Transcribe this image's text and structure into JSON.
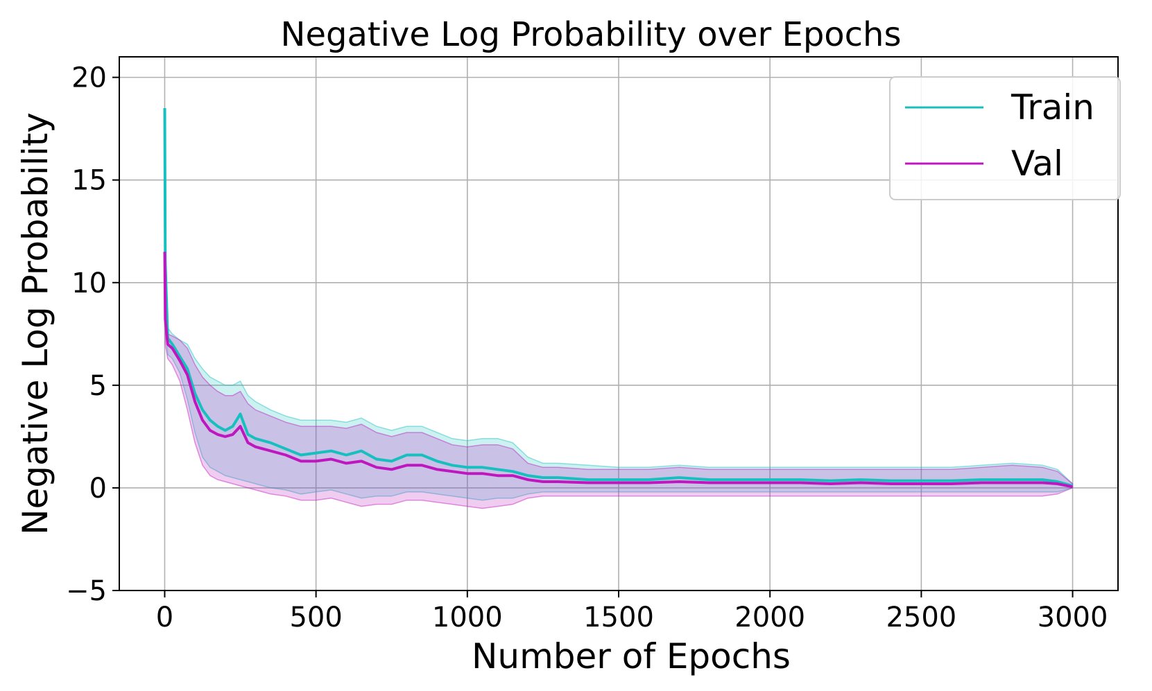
{
  "chart_data": {
    "type": "line",
    "title": "Negative Log Probability over Epochs",
    "xlabel": "Number of Epochs",
    "ylabel": "Negative Log Probability",
    "xlim": [
      -150,
      3150
    ],
    "ylim": [
      -5,
      21
    ],
    "xticks": [
      0,
      500,
      1000,
      1500,
      2000,
      2500,
      3000
    ],
    "yticks": [
      -5,
      0,
      5,
      10,
      15,
      20
    ],
    "xtick_labels": [
      "0",
      "500",
      "1000",
      "1500",
      "2000",
      "2500",
      "3000"
    ],
    "ytick_labels": [
      "−5",
      "0",
      "5",
      "10",
      "15",
      "20"
    ],
    "grid": true,
    "legend_position": "top-right",
    "series": [
      {
        "name": "Train",
        "color": "#17bfbf",
        "x": [
          0,
          2,
          10,
          25,
          50,
          75,
          100,
          125,
          150,
          175,
          200,
          225,
          250,
          275,
          300,
          350,
          400,
          450,
          500,
          550,
          600,
          650,
          700,
          750,
          800,
          850,
          900,
          950,
          1000,
          1050,
          1100,
          1150,
          1200,
          1250,
          1300,
          1400,
          1500,
          1600,
          1700,
          1800,
          1900,
          2000,
          2100,
          2200,
          2300,
          2400,
          2500,
          2600,
          2700,
          2800,
          2900,
          2950,
          3000
        ],
        "values": [
          18.5,
          11.0,
          7.3,
          7.0,
          6.4,
          5.8,
          4.6,
          3.8,
          3.3,
          3.0,
          2.8,
          3.0,
          3.6,
          2.6,
          2.4,
          2.2,
          1.9,
          1.6,
          1.7,
          1.8,
          1.6,
          1.8,
          1.4,
          1.3,
          1.6,
          1.6,
          1.3,
          1.1,
          1.0,
          1.0,
          0.9,
          0.8,
          0.6,
          0.5,
          0.5,
          0.4,
          0.4,
          0.4,
          0.5,
          0.4,
          0.4,
          0.4,
          0.4,
          0.35,
          0.4,
          0.35,
          0.35,
          0.35,
          0.4,
          0.4,
          0.4,
          0.3,
          0.1
        ],
        "band_upper": [
          18.5,
          11.5,
          7.8,
          7.5,
          7.2,
          7.0,
          6.3,
          5.8,
          5.4,
          5.2,
          5.0,
          5.0,
          5.2,
          4.5,
          4.2,
          3.8,
          3.5,
          3.3,
          3.3,
          3.3,
          3.2,
          3.4,
          3.0,
          2.8,
          3.0,
          3.0,
          2.7,
          2.4,
          2.3,
          2.4,
          2.4,
          2.2,
          1.5,
          1.2,
          1.2,
          1.1,
          1.0,
          1.0,
          1.1,
          1.0,
          1.0,
          1.0,
          1.0,
          1.0,
          1.0,
          1.0,
          1.0,
          1.0,
          1.1,
          1.2,
          1.1,
          0.9,
          0.2
        ],
        "band_lower": [
          11.0,
          8.0,
          6.5,
          6.3,
          5.6,
          4.3,
          2.7,
          1.5,
          1.0,
          0.8,
          0.6,
          0.5,
          0.4,
          0.3,
          0.2,
          0.0,
          -0.1,
          -0.3,
          -0.2,
          -0.1,
          -0.3,
          -0.5,
          -0.4,
          -0.4,
          -0.2,
          -0.2,
          -0.3,
          -0.4,
          -0.5,
          -0.6,
          -0.5,
          -0.5,
          -0.3,
          -0.2,
          -0.2,
          -0.2,
          -0.2,
          -0.2,
          -0.2,
          -0.2,
          -0.2,
          -0.2,
          -0.2,
          -0.2,
          -0.2,
          -0.2,
          -0.2,
          -0.2,
          -0.2,
          -0.2,
          -0.2,
          -0.2,
          0.0
        ]
      },
      {
        "name": "Val",
        "color": "#bf17bf",
        "x": [
          0,
          2,
          10,
          25,
          50,
          75,
          100,
          125,
          150,
          175,
          200,
          225,
          250,
          275,
          300,
          350,
          400,
          450,
          500,
          550,
          600,
          650,
          700,
          750,
          800,
          850,
          900,
          950,
          1000,
          1050,
          1100,
          1150,
          1200,
          1250,
          1300,
          1400,
          1500,
          1600,
          1700,
          1800,
          1900,
          2000,
          2100,
          2200,
          2300,
          2400,
          2500,
          2600,
          2700,
          2800,
          2900,
          2950,
          3000
        ],
        "values": [
          11.5,
          8.2,
          7.0,
          6.8,
          6.2,
          5.5,
          4.2,
          3.3,
          2.8,
          2.6,
          2.5,
          2.6,
          3.0,
          2.2,
          2.0,
          1.8,
          1.6,
          1.3,
          1.3,
          1.4,
          1.2,
          1.3,
          1.0,
          0.9,
          1.1,
          1.1,
          0.9,
          0.8,
          0.7,
          0.7,
          0.6,
          0.6,
          0.4,
          0.3,
          0.3,
          0.25,
          0.25,
          0.25,
          0.3,
          0.25,
          0.25,
          0.25,
          0.25,
          0.2,
          0.25,
          0.2,
          0.2,
          0.2,
          0.25,
          0.25,
          0.25,
          0.2,
          0.05
        ],
        "band_upper": [
          11.5,
          9.5,
          7.5,
          7.4,
          7.2,
          6.8,
          6.0,
          5.4,
          5.0,
          4.7,
          4.5,
          4.5,
          4.7,
          4.1,
          3.8,
          3.5,
          3.2,
          3.0,
          3.0,
          3.0,
          2.9,
          3.1,
          2.7,
          2.5,
          2.7,
          2.7,
          2.4,
          2.1,
          2.0,
          2.1,
          2.1,
          1.9,
          1.2,
          1.0,
          1.0,
          0.9,
          0.9,
          0.9,
          1.0,
          0.9,
          0.9,
          0.9,
          0.9,
          0.9,
          0.9,
          0.9,
          0.9,
          0.9,
          1.0,
          1.1,
          1.0,
          0.8,
          0.2
        ],
        "band_lower": [
          11.5,
          7.0,
          6.3,
          6.0,
          5.2,
          3.8,
          2.2,
          1.1,
          0.6,
          0.4,
          0.3,
          0.2,
          0.1,
          0.0,
          -0.1,
          -0.3,
          -0.4,
          -0.6,
          -0.6,
          -0.5,
          -0.7,
          -0.9,
          -0.8,
          -0.8,
          -0.6,
          -0.6,
          -0.7,
          -0.8,
          -0.9,
          -1.0,
          -0.9,
          -0.8,
          -0.5,
          -0.4,
          -0.4,
          -0.4,
          -0.4,
          -0.4,
          -0.4,
          -0.4,
          -0.4,
          -0.4,
          -0.4,
          -0.4,
          -0.4,
          -0.4,
          -0.4,
          -0.4,
          -0.4,
          -0.4,
          -0.4,
          -0.3,
          0.0
        ]
      }
    ]
  }
}
